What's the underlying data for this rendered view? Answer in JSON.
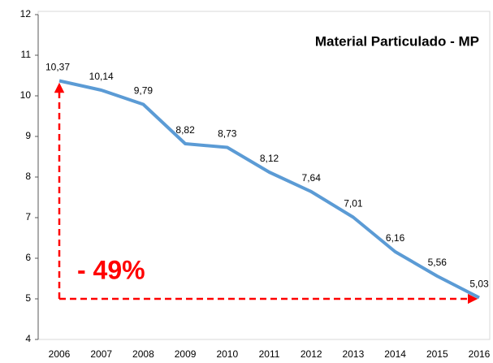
{
  "chart_data": {
    "type": "line",
    "title": "Material Particulado - MP",
    "categories": [
      "2006",
      "2007",
      "2008",
      "2009",
      "2010",
      "2011",
      "2012",
      "2013",
      "2014",
      "2015",
      "2016"
    ],
    "values": [
      10.37,
      10.14,
      9.79,
      8.82,
      8.73,
      8.12,
      7.64,
      7.01,
      6.16,
      5.56,
      5.03
    ],
    "value_labels": [
      "10,37",
      "10,14",
      "9,79",
      "8,82",
      "8,73",
      "8,12",
      "7,64",
      "7,01",
      "6,16",
      "5,56",
      "5,03"
    ],
    "color": "#5b9bd5",
    "ylim": [
      4,
      12
    ],
    "yticks": [
      4,
      5,
      6,
      7,
      8,
      9,
      10,
      11,
      12
    ],
    "grid": false,
    "annotation": "- 49%"
  }
}
